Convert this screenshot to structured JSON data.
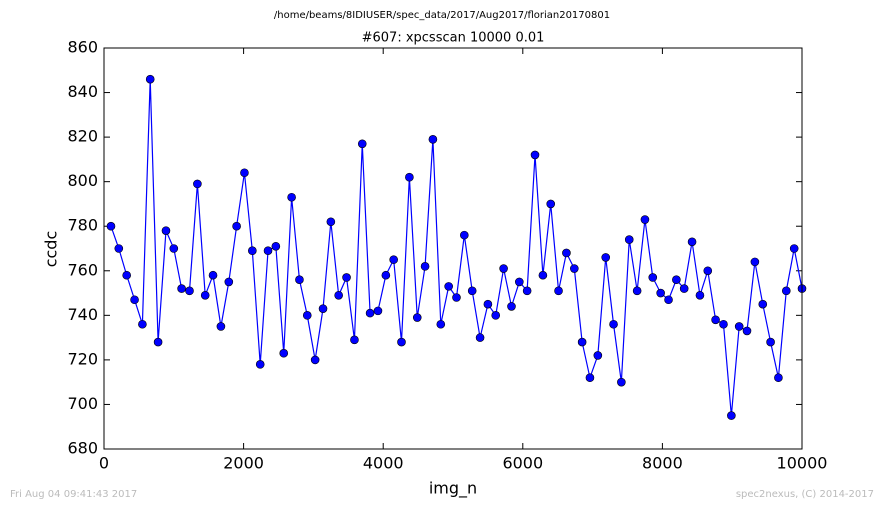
{
  "chart_data": {
    "type": "line",
    "suptitle": "/home/beams/8IDIUSER/spec_data/2017/Aug2017/florian20170801",
    "title": "#607: xpcsscan 10000 0.01",
    "x_label": "img_n",
    "y_label": "ccdc",
    "footer_left": "Fri Aug 04 09:41:43 2017",
    "footer_right": "spec2nexus, (C) 2014-2017",
    "x": [
      100,
      212,
      325,
      438,
      550,
      662,
      775,
      888,
      1000,
      1112,
      1225,
      1338,
      1450,
      1562,
      1675,
      1788,
      1900,
      2012,
      2125,
      2238,
      2350,
      2462,
      2575,
      2688,
      2800,
      2912,
      3025,
      3138,
      3250,
      3362,
      3475,
      3588,
      3700,
      3812,
      3925,
      4038,
      4150,
      4262,
      4375,
      4488,
      4600,
      4712,
      4825,
      4938,
      5050,
      5162,
      5275,
      5388,
      5500,
      5612,
      5725,
      5838,
      5950,
      6062,
      6175,
      6288,
      6400,
      6512,
      6625,
      6738,
      6850,
      6962,
      7075,
      7188,
      7300,
      7412,
      7525,
      7638,
      7750,
      7862,
      7975,
      8088,
      8200,
      8312,
      8425,
      8538,
      8650,
      8762,
      8875,
      8988,
      9100,
      9212,
      9325,
      9438,
      9550,
      9662,
      9775,
      9888,
      10000
    ],
    "series": [
      {
        "name": "ccdc",
        "color": "#0000ff",
        "values": [
          780,
          770,
          758,
          747,
          736,
          846,
          728,
          778,
          770,
          752,
          751,
          799,
          749,
          758,
          735,
          755,
          780,
          804,
          769,
          718,
          769,
          771,
          723,
          793,
          756,
          740,
          720,
          743,
          782,
          749,
          757,
          729,
          817,
          741,
          742,
          758,
          765,
          728,
          802,
          739,
          762,
          819,
          736,
          753,
          748,
          776,
          751,
          730,
          745,
          740,
          761,
          744,
          755,
          751,
          812,
          758,
          790,
          751,
          768,
          761,
          728,
          712,
          722,
          766,
          736,
          710,
          774,
          751,
          783,
          757,
          750,
          747,
          756,
          752,
          773,
          749,
          760,
          738,
          736,
          695,
          735,
          733,
          764,
          745,
          728,
          712,
          751,
          770,
          752
        ]
      }
    ],
    "xlim": [
      0,
      10000
    ],
    "xticks": [
      0,
      2000,
      4000,
      6000,
      8000,
      10000
    ],
    "ylim": [
      680,
      860
    ],
    "yticks": [
      680,
      700,
      720,
      740,
      760,
      780,
      800,
      820,
      840,
      860
    ]
  }
}
